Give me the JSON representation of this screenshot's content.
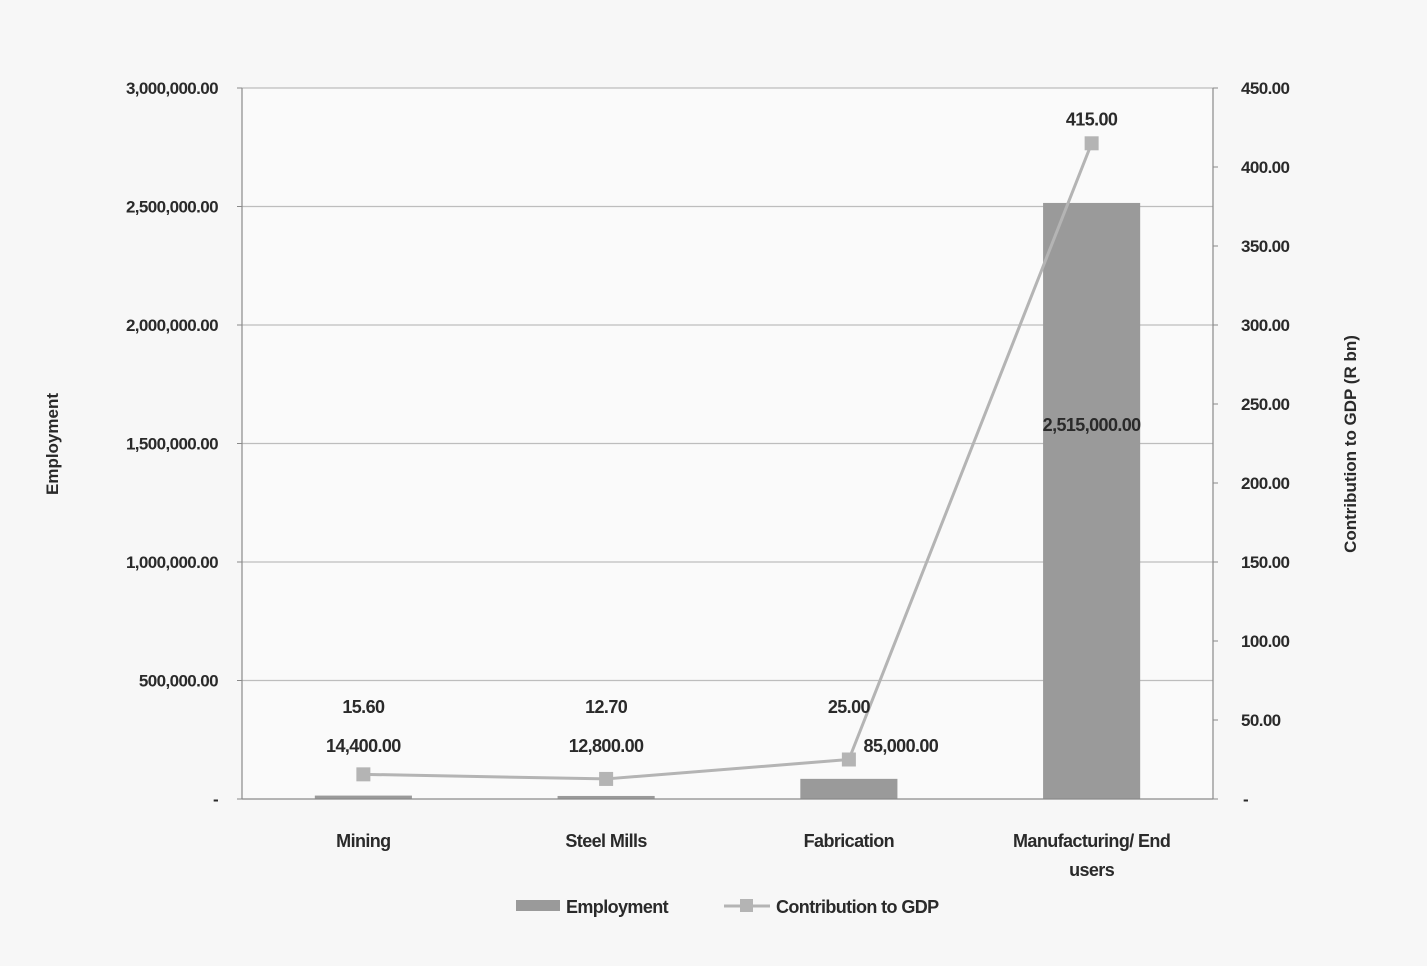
{
  "chart_data": {
    "type": "bar",
    "categories": [
      "Mining",
      "Steel Mills",
      "Fabrication",
      "Manufacturing/ End users"
    ],
    "series": [
      {
        "name": "Employment",
        "type": "bar",
        "axis": "left",
        "values": [
          14400,
          12800,
          85000,
          2515000
        ],
        "data_labels": [
          "14,400.00",
          "12,800.00",
          "85,000.00",
          "2,515,000.00"
        ],
        "color": "#9a9a9a"
      },
      {
        "name": "Contribution to GDP",
        "type": "line",
        "axis": "right",
        "values": [
          15.6,
          12.7,
          25.0,
          415.0
        ],
        "data_labels": [
          "15.60",
          "12.70",
          "25.00",
          "415.00"
        ],
        "color": "#b4b4b4"
      }
    ],
    "ylabel": "Employment",
    "y2label": "Contribution to GDP (R bn)",
    "ylim": [
      0,
      3000000
    ],
    "y2lim": [
      0,
      450
    ],
    "yticks": [
      "-",
      "500,000.00",
      "1,000,000.00",
      "1,500,000.00",
      "2,000,000.00",
      "2,500,000.00",
      "3,000,000.00"
    ],
    "y2ticks": [
      "-",
      "50.00",
      "100.00",
      "150.00",
      "200.00",
      "250.00",
      "300.00",
      "350.00",
      "400.00",
      "450.00"
    ],
    "grid": true,
    "legend": "bottom",
    "colors": {
      "background": "#f7f7f7",
      "grid": "#bdbdbd",
      "text": "#2a2a2a"
    }
  }
}
